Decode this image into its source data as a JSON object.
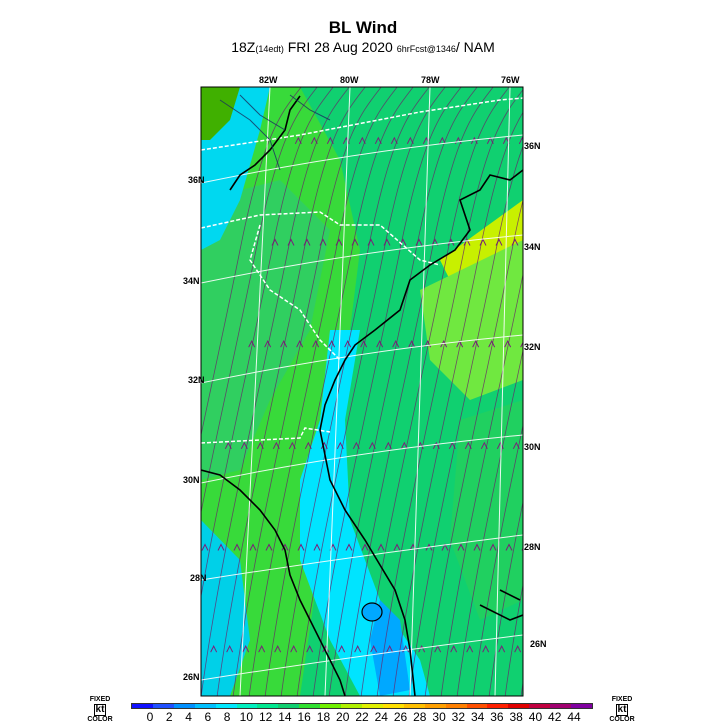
{
  "header": {
    "title": "BL Wind",
    "time_main": "18Z",
    "time_local": "(14edt)",
    "date": "FRI 28 Aug 2020",
    "forecast": "6hrFcst@1346",
    "model": "NAM"
  },
  "map": {
    "lon_labels": [
      "82W",
      "80W",
      "78W",
      "76W"
    ],
    "lat_labels_left": [
      "36N",
      "34N",
      "32N",
      "30N",
      "28N",
      "26N"
    ],
    "lat_labels_right": [
      "36N",
      "34N",
      "32N",
      "30N",
      "28N",
      "26N"
    ],
    "colors": {
      "ocean_east": "#10d070",
      "coast_cyan": "#00e0ff",
      "green_light": "#30e030",
      "yellow_green": "#c0f000",
      "streamline": "#6a1f6a",
      "borders": "#ffffff",
      "coastline": "#000000"
    }
  },
  "legend": {
    "left_label_top": "FIXED",
    "left_label_mid": "kt",
    "left_label_bottom": "COLOR",
    "right_label_top": "FIXED",
    "right_label_mid": "kt",
    "right_label_bottom": "COLOR",
    "ticks": [
      "0",
      "2",
      "4",
      "6",
      "8",
      "10",
      "12",
      "14",
      "16",
      "18",
      "20",
      "22",
      "24",
      "26",
      "28",
      "30",
      "32",
      "34",
      "36",
      "38",
      "40",
      "42",
      "44"
    ],
    "colors": [
      "#1010ff",
      "#2050ff",
      "#0090ff",
      "#00c0ff",
      "#00e8ff",
      "#00f0c0",
      "#00e890",
      "#10d070",
      "#30e030",
      "#70f000",
      "#b0f000",
      "#e0f000",
      "#ffe000",
      "#ffc000",
      "#ffa000",
      "#ff8000",
      "#ff5000",
      "#ff2000",
      "#e00000",
      "#c00040",
      "#a00070",
      "#8000a0"
    ]
  }
}
